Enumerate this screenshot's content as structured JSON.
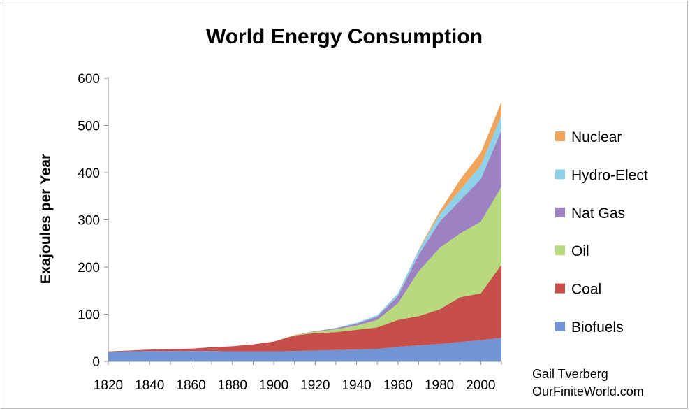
{
  "chart_data": {
    "type": "area",
    "title": "World Energy Consumption",
    "ylabel": "Exajoules per Year",
    "xlabel": "",
    "x": [
      1820,
      1830,
      1840,
      1850,
      1860,
      1870,
      1880,
      1890,
      1900,
      1910,
      1920,
      1930,
      1940,
      1950,
      1960,
      1970,
      1980,
      1990,
      2000,
      2010
    ],
    "xlim": [
      1820,
      2010
    ],
    "ylim": [
      0,
      600
    ],
    "xticks": [
      "1820",
      "1840",
      "1860",
      "1880",
      "1900",
      "1920",
      "1940",
      "1960",
      "1980",
      "2000"
    ],
    "yticks": [
      "0",
      "100",
      "200",
      "300",
      "400",
      "500",
      "600"
    ],
    "stacked": true,
    "grid": "none",
    "legend_position": "right",
    "series": [
      {
        "name": "Biofuels",
        "color": "#6f93d3",
        "values": [
          20,
          21,
          22,
          22,
          22,
          22,
          21,
          21,
          21,
          22,
          23,
          24,
          25,
          26,
          31,
          34,
          37,
          41,
          45,
          50
        ]
      },
      {
        "name": "Coal",
        "color": "#c64f4a",
        "values": [
          1,
          2,
          3,
          4,
          5,
          8,
          11,
          15,
          21,
          33,
          37,
          38,
          42,
          46,
          57,
          62,
          73,
          95,
          99,
          155
        ]
      },
      {
        "name": "Oil",
        "color": "#b8d97d",
        "values": [
          0,
          0,
          0,
          0,
          0,
          0,
          0,
          0,
          0,
          1,
          3,
          6,
          9,
          16,
          35,
          95,
          130,
          135,
          152,
          165
        ]
      },
      {
        "name": "Nat Gas",
        "color": "#9c82c3",
        "values": [
          0,
          0,
          0,
          0,
          0,
          0,
          0,
          0,
          0,
          0,
          1,
          2,
          4,
          7,
          15,
          35,
          55,
          70,
          90,
          120
        ]
      },
      {
        "name": "Hydro-Elect",
        "color": "#8fd1e8",
        "values": [
          0,
          0,
          0,
          0,
          0,
          0,
          0,
          0,
          0,
          0,
          0,
          1,
          2,
          3,
          6,
          10,
          15,
          22,
          29,
          32
        ]
      },
      {
        "name": "Nuclear",
        "color": "#efa55c",
        "values": [
          0,
          0,
          0,
          0,
          0,
          0,
          0,
          0,
          0,
          0,
          0,
          0,
          0,
          0,
          0,
          1,
          7,
          22,
          27,
          28
        ]
      }
    ]
  },
  "credit": {
    "line1": "Gail Tverberg",
    "line2": "OurFiniteWorld.com"
  }
}
